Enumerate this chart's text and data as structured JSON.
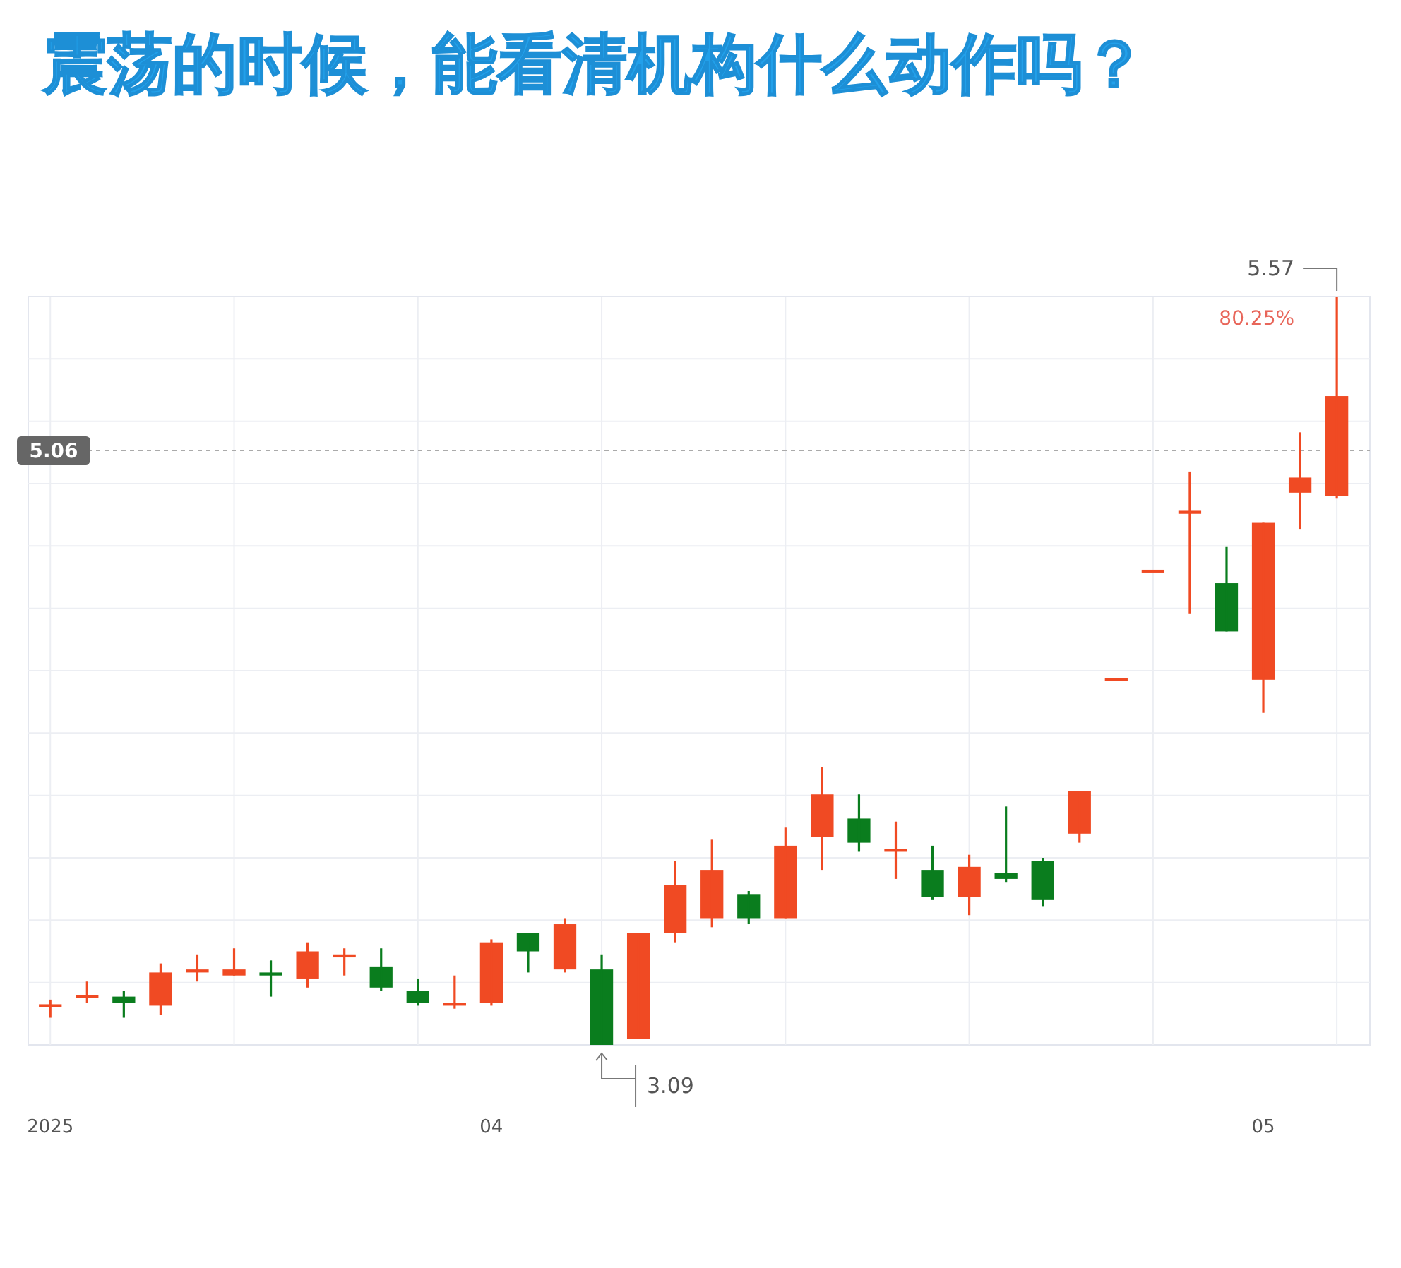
{
  "chart_data": {
    "type": "candlestick",
    "title": "震荡的时候，能看清机构什么动作吗？",
    "categories": [
      "2025",
      null,
      null,
      null,
      null,
      null,
      null,
      null,
      null,
      null,
      null,
      null,
      "04",
      null,
      null,
      null,
      null,
      null,
      null,
      null,
      null,
      null,
      null,
      null,
      null,
      null,
      null,
      null,
      null,
      null,
      null,
      null,
      null,
      "05",
      null,
      null
    ],
    "ohlc": [
      [
        3.22,
        3.24,
        3.18,
        3.22
      ],
      [
        3.25,
        3.3,
        3.23,
        3.25
      ],
      [
        3.25,
        3.27,
        3.18,
        3.23
      ],
      [
        3.22,
        3.36,
        3.19,
        3.33
      ],
      [
        3.33,
        3.39,
        3.3,
        3.34
      ],
      [
        3.32,
        3.41,
        3.32,
        3.34
      ],
      [
        3.33,
        3.37,
        3.25,
        3.32
      ],
      [
        3.31,
        3.43,
        3.28,
        3.4
      ],
      [
        3.38,
        3.41,
        3.32,
        3.39
      ],
      [
        3.35,
        3.41,
        3.27,
        3.28
      ],
      [
        3.27,
        3.31,
        3.22,
        3.23
      ],
      [
        3.22,
        3.32,
        3.21,
        3.23
      ],
      [
        3.23,
        3.44,
        3.22,
        3.43
      ],
      [
        3.46,
        3.46,
        3.33,
        3.4
      ],
      [
        3.34,
        3.51,
        3.33,
        3.49
      ],
      [
        3.34,
        3.39,
        3.09,
        3.09
      ],
      [
        3.11,
        3.46,
        3.11,
        3.46
      ],
      [
        3.46,
        3.7,
        3.43,
        3.62
      ],
      [
        3.51,
        3.77,
        3.48,
        3.67
      ],
      [
        3.59,
        3.6,
        3.49,
        3.51
      ],
      [
        3.51,
        3.81,
        3.51,
        3.75
      ],
      [
        3.78,
        4.01,
        3.67,
        3.92
      ],
      [
        3.84,
        3.92,
        3.73,
        3.76
      ],
      [
        3.73,
        3.83,
        3.64,
        3.74
      ],
      [
        3.67,
        3.75,
        3.57,
        3.58
      ],
      [
        3.58,
        3.72,
        3.52,
        3.68
      ],
      [
        3.66,
        3.88,
        3.63,
        3.64
      ],
      [
        3.7,
        3.71,
        3.55,
        3.57
      ],
      [
        3.79,
        3.93,
        3.76,
        3.93
      ],
      [
        4.3,
        4.3,
        4.3,
        4.3
      ],
      [
        4.66,
        4.66,
        4.66,
        4.66
      ],
      [
        4.85,
        4.99,
        4.52,
        4.86
      ],
      [
        4.62,
        4.74,
        4.46,
        4.46
      ],
      [
        4.3,
        4.82,
        4.19,
        4.82
      ],
      [
        4.92,
        5.12,
        4.8,
        4.97
      ],
      [
        4.91,
        5.57,
        4.9,
        5.24
      ]
    ],
    "colors": [
      "#f04a23",
      "#f04a23",
      "#0a7d1e",
      "#f04a23",
      "#f04a23",
      "#f04a23",
      "#0a7d1e",
      "#f04a23",
      "#f04a23",
      "#0a7d1e",
      "#0a7d1e",
      "#f04a23",
      "#f04a23",
      "#0a7d1e",
      "#f04a23",
      "#0a7d1e",
      "#f04a23",
      "#f04a23",
      "#f04a23",
      "#0a7d1e",
      "#f04a23",
      "#f04a23",
      "#0a7d1e",
      "#f04a23",
      "#0a7d1e",
      "#f04a23",
      "#0a7d1e",
      "#0a7d1e",
      "#f04a23",
      "#f04a23",
      "#f04a23",
      "#f04a23",
      "#0a7d1e",
      "#f04a23",
      "#f04a23",
      "#f04a23"
    ],
    "ref_lines": [
      {
        "axis": "y",
        "value": 5.06,
        "label": "5.06"
      }
    ],
    "annotations": [
      "5.57",
      "80.25%",
      "3.09"
    ],
    "grid": true
  }
}
